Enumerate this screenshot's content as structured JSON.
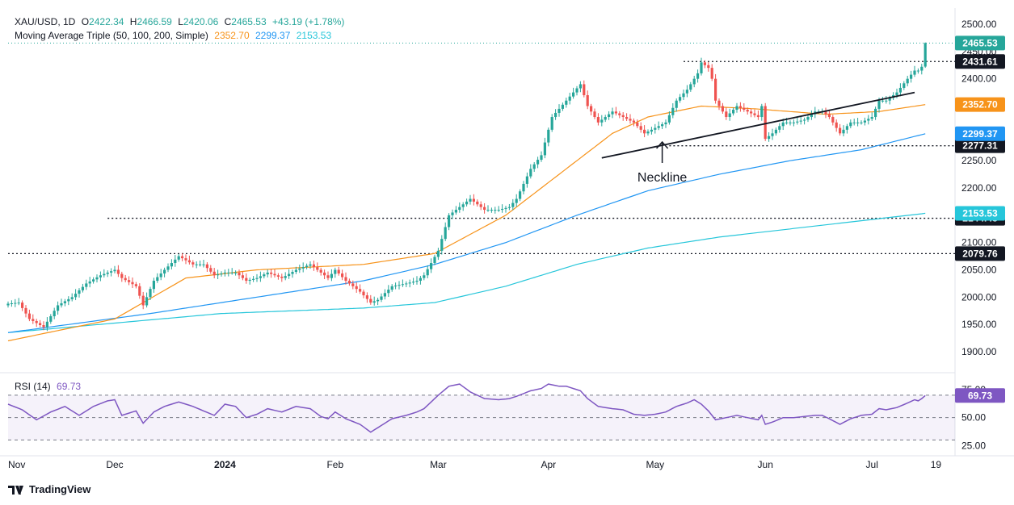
{
  "header": {
    "symbol": "XAU/USD, 1D",
    "o_label": "O",
    "o": "2422.34",
    "h_label": "H",
    "h": "2466.59",
    "l_label": "L",
    "l": "2420.06",
    "c_label": "C",
    "c": "2465.53",
    "change": "+43.19 (+1.78%)",
    "ma_name": "Moving Average Triple (50, 100, 200, Simple)",
    "ma50": "2352.70",
    "ma100": "2299.37",
    "ma200": "2153.53",
    "rsi_name": "RSI (14)",
    "rsi_value": "69.73"
  },
  "footer": {
    "brand": "TradingView"
  },
  "colors": {
    "up": "#26a69a",
    "down": "#ef5350",
    "ma50": "#f7931a",
    "ma100": "#2196f3",
    "ma200": "#26c6da",
    "rsi": "#7e57c2",
    "price_badge": "#26a69a",
    "level_badge": "#131722"
  },
  "chart_data": [
    {
      "type": "candlestick",
      "title": "XAU/USD, 1D",
      "ylim": [
        1870,
        2515
      ],
      "yticks": [
        1900,
        1950,
        2000,
        2050,
        2100,
        2150,
        2200,
        2250,
        2300,
        2350,
        2400,
        2450,
        2500
      ],
      "ytick_labels": [
        "1900.00",
        "1950.00",
        "2000.00",
        "2050.00",
        "2100.00",
        "2150.00",
        "2200.00",
        "2250.00",
        "2300.00",
        "2350.00",
        "2400.00",
        "2450.00",
        "2500.00"
      ],
      "xticks": [
        "Nov",
        "Dec",
        "2024",
        "Feb",
        "Mar",
        "Apr",
        "May",
        "Jun",
        "Jul",
        "19"
      ],
      "xtick_days": [
        0,
        30,
        61,
        92,
        121,
        152,
        182,
        213,
        243,
        261
      ],
      "x_days_last": 258,
      "close_anchors": [
        [
          0,
          1988
        ],
        [
          3,
          1990
        ],
        [
          6,
          1960
        ],
        [
          10,
          1945
        ],
        [
          14,
          1985
        ],
        [
          18,
          2000
        ],
        [
          22,
          2025
        ],
        [
          26,
          2040
        ],
        [
          30,
          2050
        ],
        [
          32,
          2035
        ],
        [
          36,
          2020
        ],
        [
          38,
          1985
        ],
        [
          41,
          2030
        ],
        [
          44,
          2050
        ],
        [
          48,
          2075
        ],
        [
          52,
          2060
        ],
        [
          55,
          2060
        ],
        [
          58,
          2040
        ],
        [
          61,
          2045
        ],
        [
          64,
          2045
        ],
        [
          67,
          2030
        ],
        [
          70,
          2035
        ],
        [
          73,
          2045
        ],
        [
          77,
          2035
        ],
        [
          81,
          2050
        ],
        [
          85,
          2060
        ],
        [
          88,
          2045
        ],
        [
          90,
          2035
        ],
        [
          92,
          2050
        ],
        [
          95,
          2030
        ],
        [
          99,
          2010
        ],
        [
          102,
          1990
        ],
        [
          104,
          1995
        ],
        [
          108,
          2020
        ],
        [
          112,
          2025
        ],
        [
          115,
          2030
        ],
        [
          117,
          2040
        ],
        [
          121,
          2085
        ],
        [
          124,
          2150
        ],
        [
          127,
          2165
        ],
        [
          130,
          2180
        ],
        [
          134,
          2160
        ],
        [
          138,
          2160
        ],
        [
          141,
          2165
        ],
        [
          143,
          2180
        ],
        [
          147,
          2235
        ],
        [
          150,
          2260
        ],
        [
          153,
          2330
        ],
        [
          157,
          2360
        ],
        [
          161,
          2390
        ],
        [
          163,
          2350
        ],
        [
          166,
          2320
        ],
        [
          170,
          2340
        ],
        [
          173,
          2330
        ],
        [
          176,
          2320
        ],
        [
          179,
          2300
        ],
        [
          182,
          2310
        ],
        [
          185,
          2320
        ],
        [
          188,
          2360
        ],
        [
          191,
          2380
        ],
        [
          194,
          2410
        ],
        [
          195,
          2430
        ],
        [
          197,
          2420
        ],
        [
          198,
          2400
        ],
        [
          199,
          2360
        ],
        [
          202,
          2330
        ],
        [
          205,
          2350
        ],
        [
          208,
          2340
        ],
        [
          211,
          2330
        ],
        [
          212,
          2350
        ],
        [
          213,
          2290
        ],
        [
          215,
          2300
        ],
        [
          218,
          2320
        ],
        [
          221,
          2320
        ],
        [
          224,
          2325
        ],
        [
          227,
          2340
        ],
        [
          229,
          2340
        ],
        [
          231,
          2330
        ],
        [
          234,
          2300
        ],
        [
          237,
          2320
        ],
        [
          240,
          2320
        ],
        [
          243,
          2330
        ],
        [
          245,
          2360
        ],
        [
          247,
          2360
        ],
        [
          250,
          2375
        ],
        [
          253,
          2400
        ],
        [
          255,
          2415
        ],
        [
          256,
          2415
        ],
        [
          257,
          2422
        ],
        [
          258,
          2465.53
        ]
      ],
      "ma50": [
        [
          0,
          1920
        ],
        [
          30,
          1960
        ],
        [
          50,
          2035
        ],
        [
          70,
          2050
        ],
        [
          100,
          2060
        ],
        [
          120,
          2080
        ],
        [
          140,
          2150
        ],
        [
          150,
          2200
        ],
        [
          160,
          2250
        ],
        [
          170,
          2300
        ],
        [
          180,
          2330
        ],
        [
          195,
          2350
        ],
        [
          210,
          2345
        ],
        [
          230,
          2335
        ],
        [
          245,
          2340
        ],
        [
          258,
          2352.7
        ]
      ],
      "ma100": [
        [
          0,
          1935
        ],
        [
          40,
          1970
        ],
        [
          70,
          2000
        ],
        [
          100,
          2030
        ],
        [
          120,
          2060
        ],
        [
          140,
          2100
        ],
        [
          160,
          2150
        ],
        [
          180,
          2195
        ],
        [
          200,
          2225
        ],
        [
          220,
          2250
        ],
        [
          240,
          2270
        ],
        [
          258,
          2299.37
        ]
      ],
      "ma200": [
        [
          0,
          1935
        ],
        [
          60,
          1970
        ],
        [
          100,
          1980
        ],
        [
          120,
          1990
        ],
        [
          140,
          2020
        ],
        [
          160,
          2060
        ],
        [
          180,
          2090
        ],
        [
          200,
          2110
        ],
        [
          220,
          2125
        ],
        [
          240,
          2140
        ],
        [
          258,
          2153.53
        ]
      ],
      "levels": [
        {
          "label": "2431.61",
          "value": 2431.61,
          "from_day": 190
        },
        {
          "label": "2277.31",
          "value": 2277.31,
          "from_day": 186
        },
        {
          "label": "2144.48",
          "value": 2144.48,
          "from_day": 28
        },
        {
          "label": "2079.76",
          "value": 2079.76,
          "from_day": 0
        }
      ],
      "neckline": {
        "label": "Neckline",
        "from": [
          167,
          2255
        ],
        "to": [
          255,
          2375
        ]
      },
      "price_labels": [
        "2465.53",
        "2352.70",
        "2299.37",
        "2153.53"
      ]
    },
    {
      "type": "line",
      "title": "RSI (14)",
      "ylim": [
        22,
        83
      ],
      "yticks": [
        25,
        50,
        75
      ],
      "ytick_labels": [
        "25.00",
        "50.00",
        "75.00"
      ],
      "band": [
        30,
        70
      ],
      "values": [
        [
          0,
          62
        ],
        [
          4,
          57
        ],
        [
          8,
          48
        ],
        [
          12,
          55
        ],
        [
          16,
          60
        ],
        [
          20,
          52
        ],
        [
          24,
          60
        ],
        [
          28,
          65
        ],
        [
          30,
          66
        ],
        [
          32,
          52
        ],
        [
          36,
          56
        ],
        [
          38,
          45
        ],
        [
          41,
          55
        ],
        [
          44,
          60
        ],
        [
          48,
          64
        ],
        [
          52,
          60
        ],
        [
          55,
          56
        ],
        [
          58,
          52
        ],
        [
          61,
          62
        ],
        [
          64,
          60
        ],
        [
          67,
          50
        ],
        [
          70,
          53
        ],
        [
          73,
          58
        ],
        [
          77,
          55
        ],
        [
          81,
          60
        ],
        [
          85,
          58
        ],
        [
          88,
          51
        ],
        [
          90,
          49
        ],
        [
          92,
          55
        ],
        [
          95,
          49
        ],
        [
          99,
          44
        ],
        [
          102,
          37
        ],
        [
          104,
          41
        ],
        [
          108,
          49
        ],
        [
          112,
          52
        ],
        [
          115,
          55
        ],
        [
          117,
          58
        ],
        [
          121,
          70
        ],
        [
          124,
          78
        ],
        [
          127,
          80
        ],
        [
          130,
          73
        ],
        [
          134,
          67
        ],
        [
          138,
          66
        ],
        [
          141,
          67
        ],
        [
          143,
          69
        ],
        [
          147,
          74
        ],
        [
          150,
          76
        ],
        [
          152,
          80
        ],
        [
          155,
          78
        ],
        [
          157,
          78
        ],
        [
          161,
          74
        ],
        [
          163,
          67
        ],
        [
          166,
          60
        ],
        [
          170,
          58
        ],
        [
          173,
          57
        ],
        [
          176,
          53
        ],
        [
          179,
          52
        ],
        [
          182,
          53
        ],
        [
          185,
          55
        ],
        [
          188,
          60
        ],
        [
          191,
          63
        ],
        [
          193,
          66
        ],
        [
          195,
          62
        ],
        [
          197,
          56
        ],
        [
          198,
          52
        ],
        [
          199,
          48
        ],
        [
          202,
          50
        ],
        [
          205,
          52
        ],
        [
          208,
          50
        ],
        [
          211,
          48
        ],
        [
          212,
          52
        ],
        [
          213,
          44
        ],
        [
          215,
          46
        ],
        [
          218,
          50
        ],
        [
          221,
          50
        ],
        [
          224,
          51
        ],
        [
          227,
          52
        ],
        [
          229,
          52
        ],
        [
          231,
          49
        ],
        [
          234,
          44
        ],
        [
          237,
          49
        ],
        [
          240,
          52
        ],
        [
          243,
          53
        ],
        [
          245,
          58
        ],
        [
          247,
          57
        ],
        [
          250,
          59
        ],
        [
          253,
          63
        ],
        [
          255,
          66
        ],
        [
          256,
          65
        ],
        [
          257,
          67
        ],
        [
          258,
          69.73
        ]
      ]
    }
  ]
}
